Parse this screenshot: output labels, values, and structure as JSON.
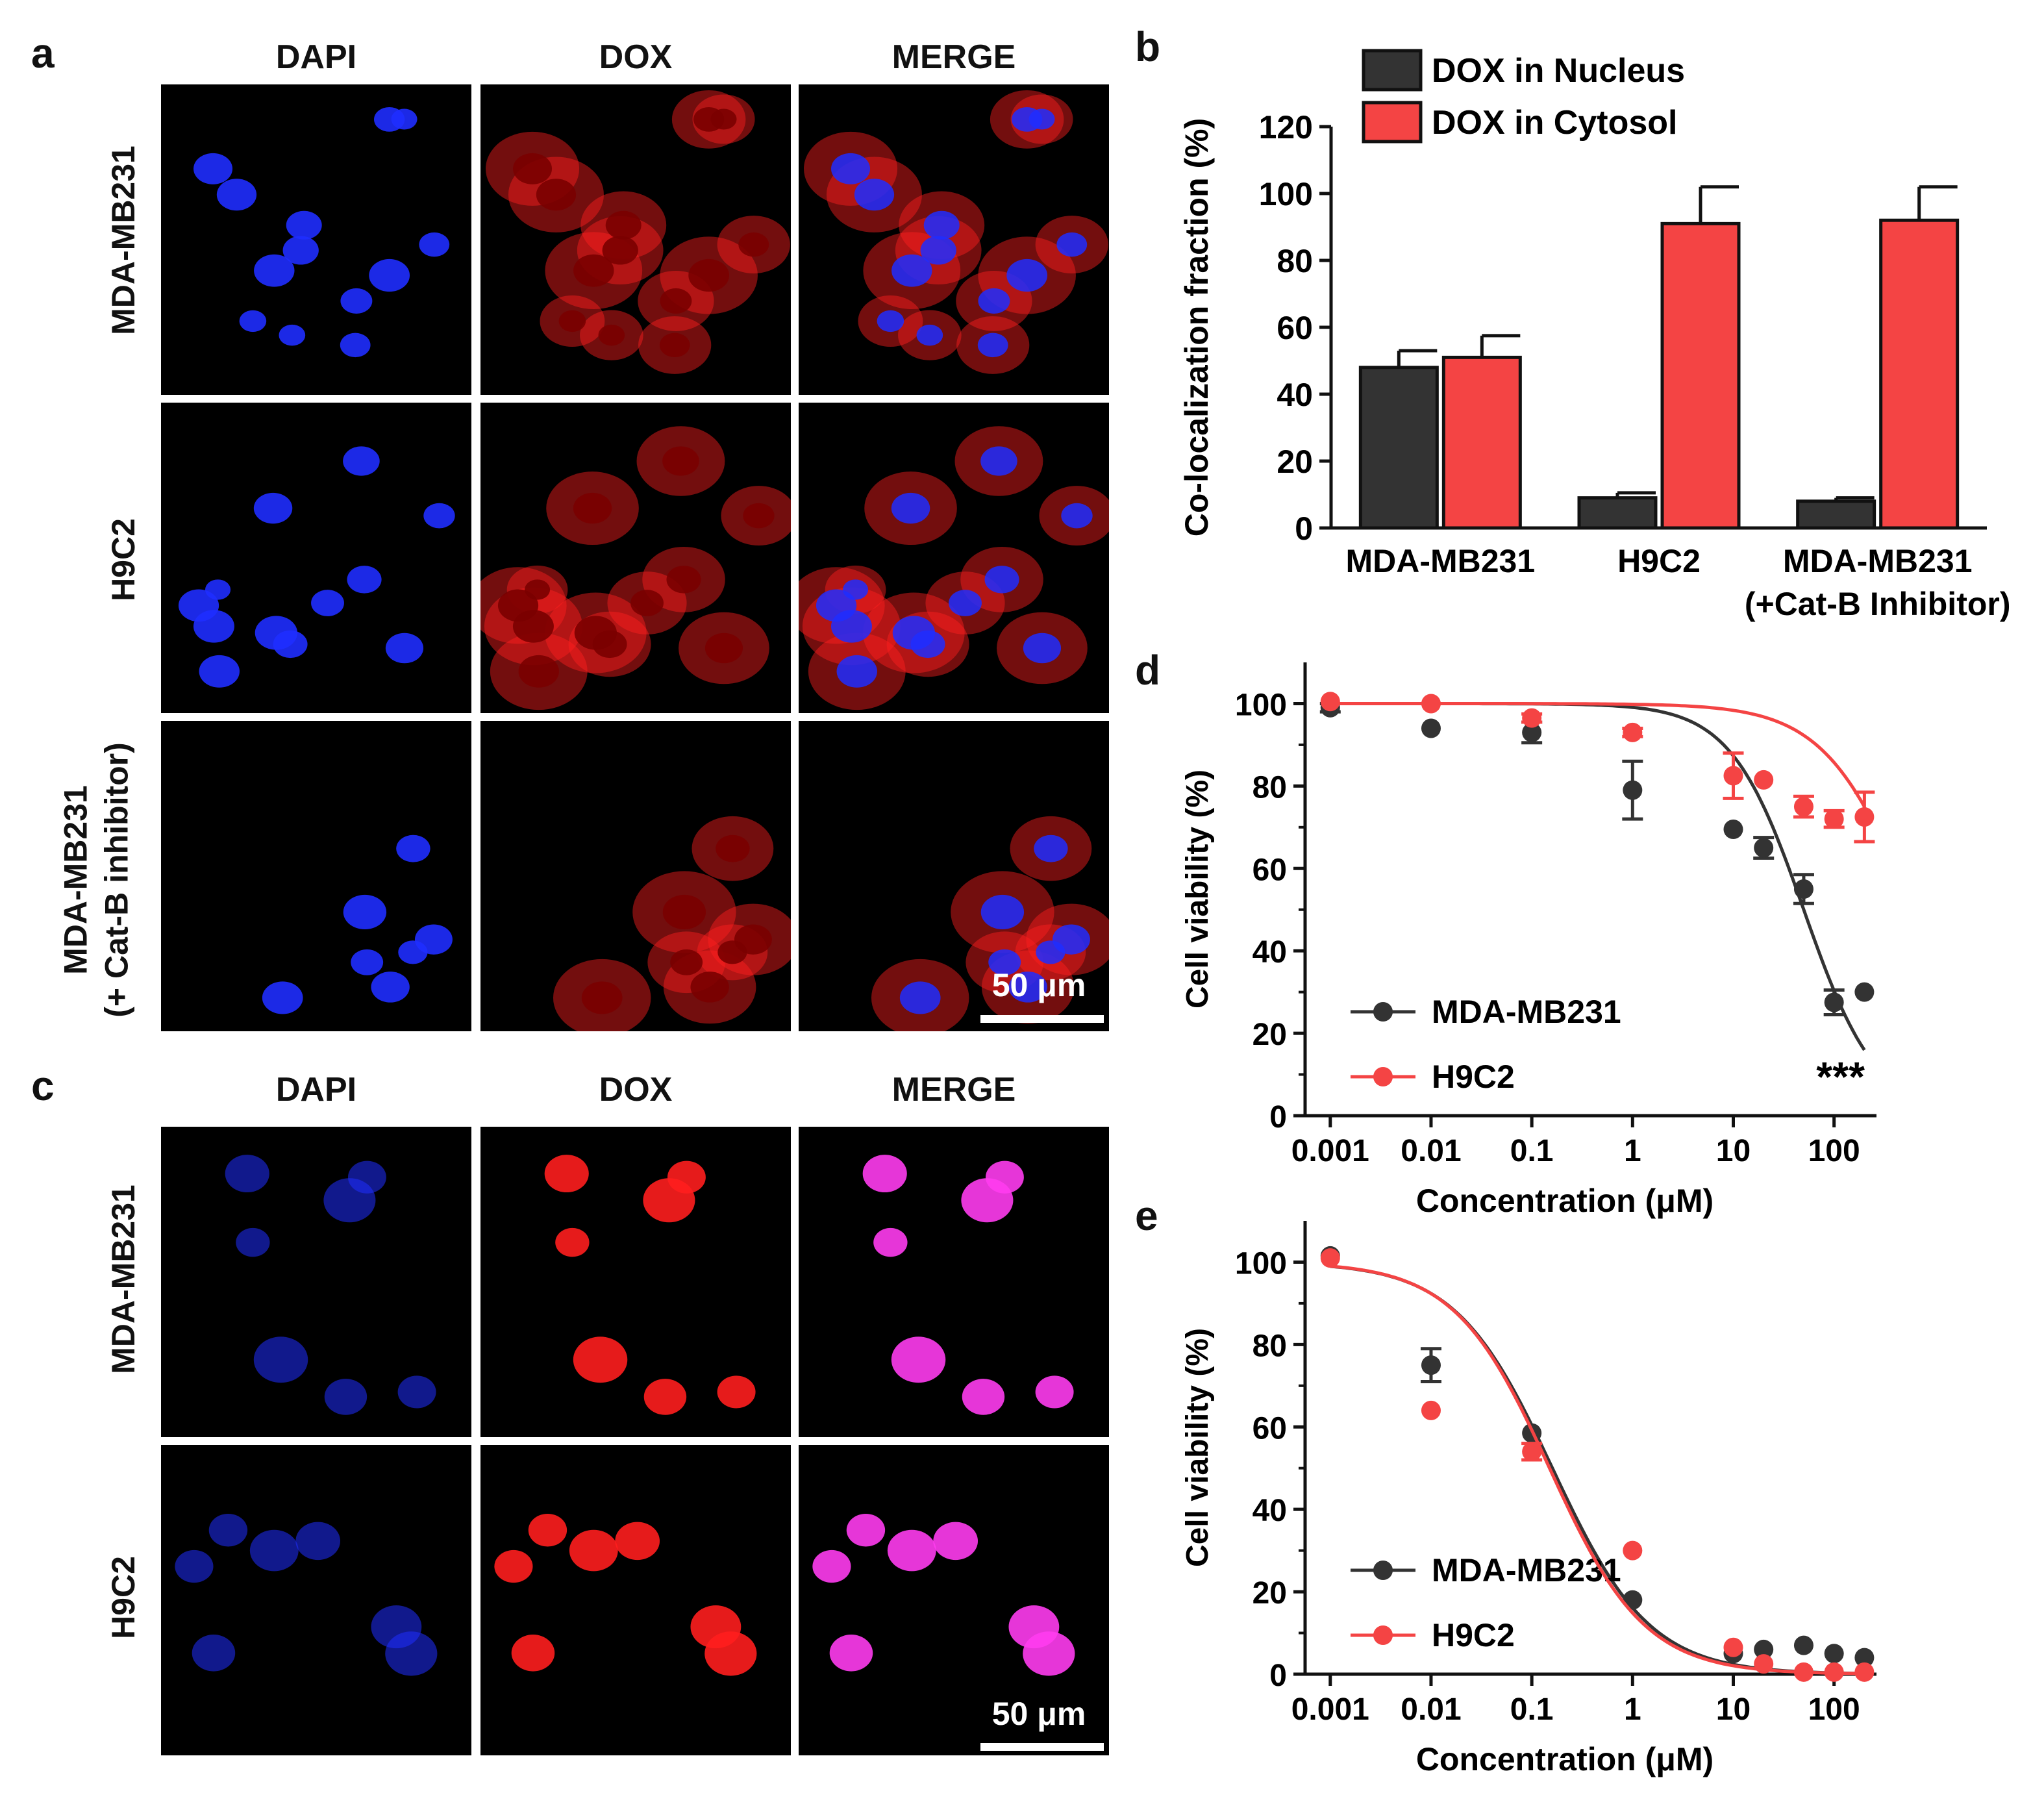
{
  "panels": {
    "a": {
      "label": "a",
      "columns": [
        "DAPI",
        "DOX",
        "MERGE"
      ],
      "rows": [
        "MDA-MB231",
        "H9C2",
        "MDA-MB231",
        "(+ Cat-B inhibitor)"
      ],
      "scale_bar": "50 μm"
    },
    "c": {
      "label": "c",
      "columns": [
        "DAPI",
        "DOX",
        "MERGE"
      ],
      "rows": [
        "MDA-MB231",
        "H9C2"
      ],
      "scale_bar": "50 μm"
    }
  },
  "colors": {
    "dapi": "#1f2dff",
    "dox": "#ff1e1e",
    "merge_nucleus": "#ff3cf0",
    "series_dark": "#333333",
    "series_red": "#f44444"
  },
  "chart_data": [
    {
      "id": "b",
      "panel_label": "b",
      "type": "bar",
      "title": "",
      "xlabel": "",
      "ylabel": "Co-localization fraction (%)",
      "ylim": [
        0,
        120
      ],
      "yticks": [
        0,
        20,
        40,
        60,
        80,
        100,
        120
      ],
      "categories": [
        "MDA-MB231",
        "H9C2",
        "MDA-MB231"
      ],
      "category_sublabels": [
        "",
        "",
        "(+Cat-B Inhibitor)"
      ],
      "series": [
        {
          "name": "DOX in Nucleus",
          "color": "#333333",
          "values": [
            48,
            9,
            8
          ],
          "errors": [
            5,
            1.5,
            1
          ]
        },
        {
          "name": "DOX in Cytosol",
          "color": "#f44444",
          "values": [
            51,
            91,
            92
          ],
          "errors": [
            6.5,
            11,
            10
          ]
        }
      ]
    },
    {
      "id": "d",
      "panel_label": "d",
      "type": "scatter",
      "title": "",
      "xlabel": "Concentration (μM)",
      "ylabel": "Cell viability (%)",
      "xscale": "log",
      "xlim": [
        0.001,
        200
      ],
      "ylim": [
        0,
        110
      ],
      "xticks": [
        0.001,
        0.01,
        0.1,
        1,
        10,
        100
      ],
      "xtick_labels": [
        "0.001",
        "0.01",
        "0.1",
        "1",
        "10",
        "100"
      ],
      "yticks": [
        0,
        20,
        40,
        60,
        80,
        100
      ],
      "annotation": "***",
      "series": [
        {
          "name": "MDA-MB231",
          "color": "#333333",
          "x": [
            0.001,
            0.01,
            0.1,
            1,
            10,
            20,
            50,
            100,
            200
          ],
          "y": [
            99,
            94,
            93,
            79,
            69.5,
            65,
            55,
            27.5,
            30
          ],
          "err": [
            1,
            0.5,
            2.5,
            7,
            0.5,
            2.5,
            3.5,
            3,
            0.5
          ],
          "fit": {
            "top": 100,
            "bottom": 0,
            "ic50": 50,
            "hill": 1.2
          }
        },
        {
          "name": "H9C2",
          "color": "#f44444",
          "x": [
            0.001,
            0.01,
            0.1,
            1,
            10,
            20,
            50,
            100,
            200
          ],
          "y": [
            100.5,
            100,
            96.5,
            93,
            82.5,
            81.5,
            75,
            72,
            72.5
          ],
          "err": [
            0.5,
            0.5,
            1,
            1,
            5.5,
            0.5,
            2.5,
            2,
            6
          ],
          "fit": {
            "top": 100,
            "bottom": 0,
            "ic50": 600,
            "hill": 1.0
          }
        }
      ]
    },
    {
      "id": "e",
      "panel_label": "e",
      "type": "scatter",
      "title": "",
      "xlabel": "Concentration (μM)",
      "ylabel": "Cell viability (%)",
      "xscale": "log",
      "xlim": [
        0.001,
        200
      ],
      "ylim": [
        0,
        110
      ],
      "xticks": [
        0.001,
        0.01,
        0.1,
        1,
        10,
        100
      ],
      "xtick_labels": [
        "0.001",
        "0.01",
        "0.1",
        "1",
        "10",
        "100"
      ],
      "yticks": [
        0,
        20,
        40,
        60,
        80,
        100
      ],
      "annotation": "",
      "series": [
        {
          "name": "MDA-MB231",
          "color": "#333333",
          "x": [
            0.001,
            0.01,
            0.1,
            1,
            10,
            20,
            50,
            100,
            200
          ],
          "y": [
            101.5,
            75,
            58.5,
            18,
            5,
            6,
            7,
            5,
            4
          ],
          "err": [
            0.5,
            4,
            0.5,
            0.5,
            0.5,
            0.5,
            0.5,
            0.5,
            0.5
          ],
          "fit": {
            "top": 100,
            "bottom": 0,
            "ic50": 0.16,
            "hill": 0.9
          }
        },
        {
          "name": "H9C2",
          "color": "#f44444",
          "x": [
            0.001,
            0.01,
            0.1,
            1,
            10,
            20,
            50,
            100,
            200
          ],
          "y": [
            101,
            64,
            54,
            30,
            6.5,
            2.5,
            0.5,
            0.5,
            0.5
          ],
          "err": [
            0.5,
            0.5,
            2,
            0.5,
            0.5,
            0.5,
            0.5,
            0.5,
            0.5
          ],
          "fit": {
            "top": 100,
            "bottom": 0,
            "ic50": 0.15,
            "hill": 0.92
          }
        }
      ]
    }
  ]
}
